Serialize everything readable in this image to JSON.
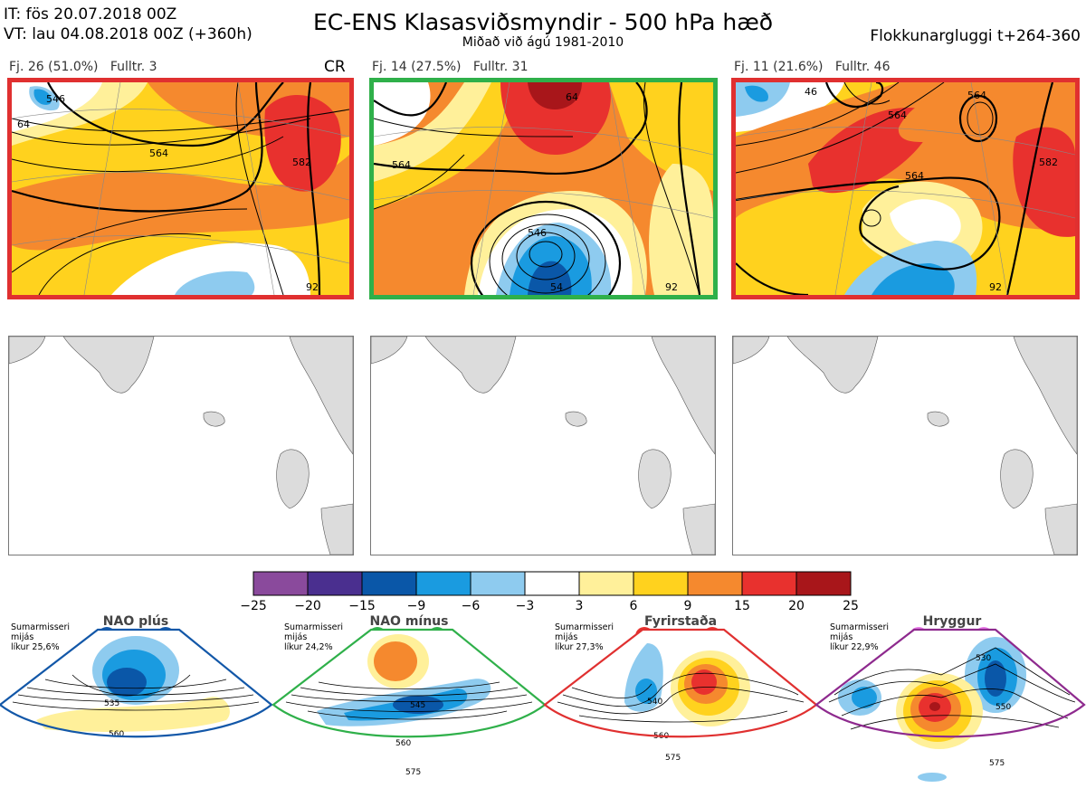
{
  "header": {
    "it_line": "IT: fös 20.07.2018 00Z",
    "vt_line": "VT: lau 04.08.2018 00Z  (+360h)",
    "title": "EC-ENS Klasasviðsmyndir - 500 hPa hæð",
    "subtitle": "Miðað við ágú 1981-2010",
    "window": "Flokkunargluggi t+264-360"
  },
  "panels": [
    {
      "label": "Fj. 26 (51.0%)   Fulltr. 3",
      "tag": "CR",
      "frame_color": "#e03030",
      "contour_labels": [
        "546",
        "564",
        "582",
        "64",
        "92"
      ]
    },
    {
      "label": "Fj. 14 (27.5%)   Fulltr. 31",
      "tag": "",
      "frame_color": "#2fb04a",
      "contour_labels": [
        "564",
        "546",
        "54",
        "92",
        "64"
      ]
    },
    {
      "label": "Fj. 11 (21.6%)   Fulltr. 46",
      "tag": "",
      "frame_color": "#e03030",
      "contour_labels": [
        "564",
        "564",
        "564",
        "582",
        "46",
        "92"
      ]
    }
  ],
  "colorbar": {
    "ticks": [
      "−25",
      "−20",
      "−15",
      "−9",
      "−6",
      "−3",
      "3",
      "6",
      "9",
      "15",
      "20",
      "25"
    ],
    "colors": [
      "#8a4a9c",
      "#4a2f8f",
      "#0a57a8",
      "#1a9be0",
      "#8ecbef",
      "#ffffff",
      "#fff09a",
      "#ffd21e",
      "#f5892e",
      "#e8312e",
      "#a8161a"
    ]
  },
  "regimes": [
    {
      "title": "NAO plús",
      "season": "Sumarmisseri",
      "sub": "mijás",
      "prob": "líkur 25,6%",
      "color": "#1257a8",
      "dot_color": "#1257a8",
      "contours": [
        "535",
        "560"
      ]
    },
    {
      "title": "NAO mínus",
      "season": "Sumarmisseri",
      "sub": "mijás",
      "prob": "líkur 24,2%",
      "color": "#2fb04a",
      "dot_color": "#2fb04a",
      "contours": [
        "545",
        "560",
        "575"
      ]
    },
    {
      "title": "Fyrirstaða",
      "season": "Sumarmisseri",
      "sub": "mijás",
      "prob": "líkur 27,3%",
      "color": "#e03030",
      "dot_color": "#e8312e",
      "contours": [
        "540",
        "560",
        "575"
      ]
    },
    {
      "title": "Hryggur",
      "season": "Sumarmisseri",
      "sub": "mijás",
      "prob": "líkur 22,9%",
      "color": "#8e2a8e",
      "dot_color": "#e879e8",
      "contours": [
        "530",
        "550",
        "575"
      ]
    }
  ],
  "chart_data": {
    "type": "heatmap",
    "title": "EC-ENS Klasasviðsmyndir - 500 hPa hæð",
    "clusters": [
      {
        "number": 26,
        "percent": 51.0,
        "representative": 3,
        "regime": "CR"
      },
      {
        "number": 14,
        "percent": 27.5,
        "representative": 31,
        "regime": ""
      },
      {
        "number": 11,
        "percent": 21.6,
        "representative": 46,
        "regime": ""
      }
    ],
    "anomaly_scale_levels": [
      -25,
      -20,
      -15,
      -9,
      -6,
      -3,
      3,
      6,
      9,
      15,
      20,
      25
    ],
    "regime_probabilities": [
      {
        "regime": "NAO plús",
        "percent": 25.6
      },
      {
        "regime": "NAO mínus",
        "percent": 24.2
      },
      {
        "regime": "Fyrirstaða",
        "percent": 27.3
      },
      {
        "regime": "Hryggur",
        "percent": 22.9
      }
    ]
  }
}
